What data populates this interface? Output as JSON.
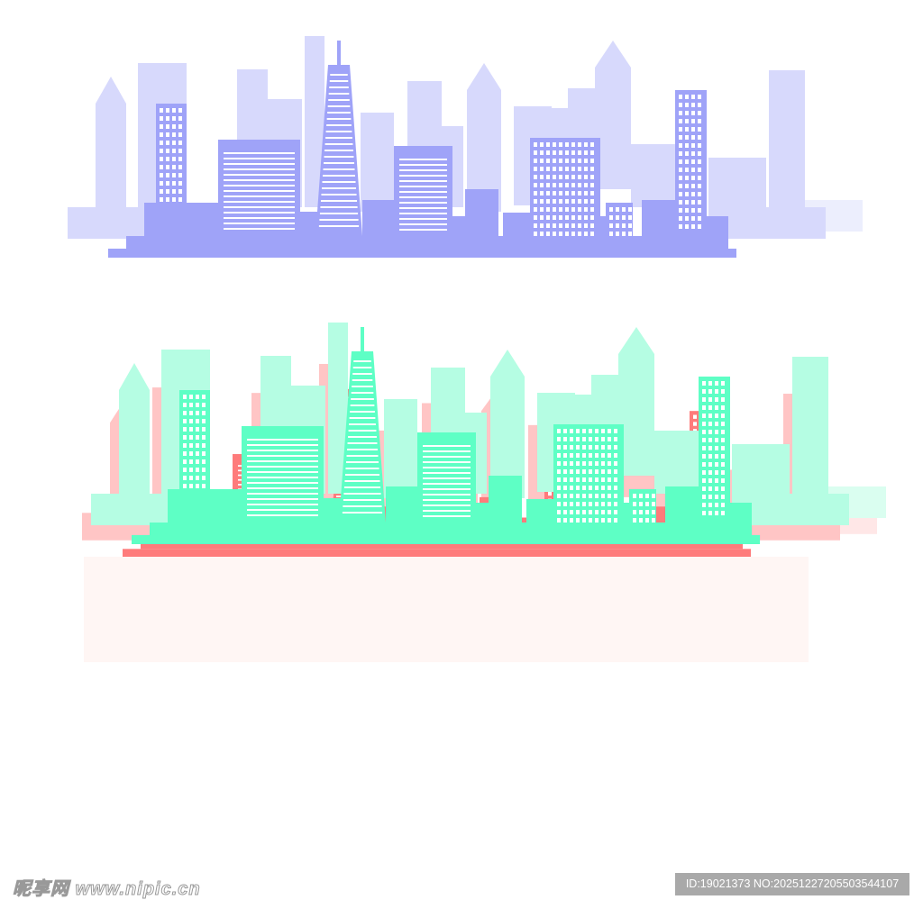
{
  "colors": {
    "purple": {
      "dark": "#9fa3f8",
      "light": "#d7d9fc",
      "pale": "#eceefd"
    },
    "red": {
      "dark": "#fe7b7b",
      "light": "#ffc5c5",
      "pale": "#ffe7e7"
    },
    "green": {
      "dark": "#5effc5",
      "light": "#b5fde3",
      "pale": "#dafef0"
    },
    "band": "#fff6f4",
    "window": "#ffffff"
  },
  "skylines": [
    "purple",
    "red",
    "green"
  ],
  "watermark": {
    "logo": "昵享网 www.nipic.cn",
    "id_text": "ID:19021373 NO:20251227205503544107"
  }
}
